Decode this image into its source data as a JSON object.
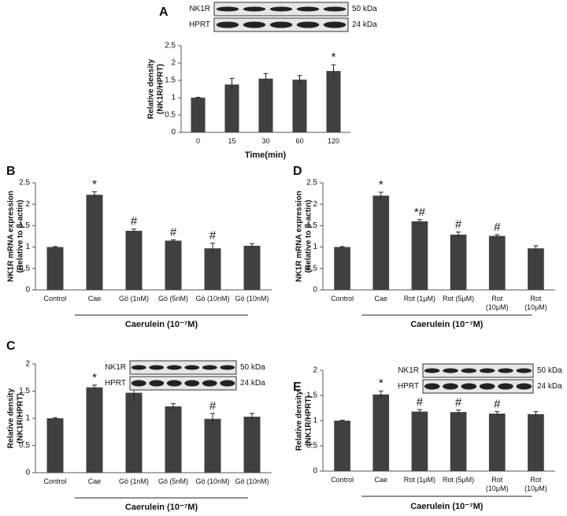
{
  "chart_data": [
    {
      "type": "bar",
      "panel": "A",
      "blot": {
        "bands": [
          "NK1R",
          "HPRT"
        ],
        "sizes": [
          "50 kDa",
          "24 kDa"
        ]
      },
      "ylabel": [
        "Relative density",
        "(NK1R/HPRT)"
      ],
      "xlabel": "Time(min)",
      "categories": [
        "0",
        "15",
        "30",
        "60",
        "120"
      ],
      "values": [
        1,
        1.38,
        1.55,
        1.52,
        1.77
      ],
      "errors": [
        0.01,
        0.18,
        0.15,
        0.12,
        0.18
      ],
      "annotations": [
        null,
        null,
        null,
        null,
        "*"
      ],
      "color": "#404040",
      "ylim": [
        0,
        2.5
      ],
      "yticks": [
        0,
        0.5,
        1,
        1.5,
        2,
        2.5
      ]
    },
    {
      "type": "bar",
      "panel": "B",
      "ylabel": [
        "NK1R mRNA expression",
        "(Relative to β-actin)"
      ],
      "xlabel": "Caerulein (10⁻⁷M)",
      "categories": [
        "Control",
        "Cae",
        "Gö (1nM)",
        "Gö (5nM)",
        "Gö (10nM)",
        "Gö (10nM)"
      ],
      "values": [
        1,
        2.22,
        1.38,
        1.15,
        0.97,
        1.03
      ],
      "errors": [
        0.01,
        0.07,
        0.04,
        0.02,
        0.12,
        0.05
      ],
      "annotations": [
        null,
        "*",
        "#",
        "#",
        "#",
        null
      ],
      "color": "#404040",
      "ylim": [
        0,
        2.5
      ],
      "yticks": [
        0,
        0.5,
        1,
        1.5,
        2,
        2.5
      ]
    },
    {
      "type": "bar",
      "panel": "D",
      "ylabel": [
        "NK1R mRNA expression",
        "(Relative to β-actin)"
      ],
      "xlabel": "Caerulein (10⁻⁷M)",
      "categories": [
        "Control",
        "Cae",
        "Rot (1μM)",
        "Rot (5μM)",
        "Rot (10μM)",
        "Rot (10μM)"
      ],
      "values": [
        1,
        2.2,
        1.6,
        1.29,
        1.26,
        0.97
      ],
      "errors": [
        0.01,
        0.08,
        0.04,
        0.06,
        0.03,
        0.06
      ],
      "annotations": [
        null,
        "*",
        "*#",
        "#",
        "#",
        null
      ],
      "color": "#404040",
      "ylim": [
        0,
        2.5
      ],
      "yticks": [
        0,
        0.5,
        1,
        1.5,
        2,
        2.5
      ]
    },
    {
      "type": "bar",
      "panel": "C",
      "blot": {
        "bands": [
          "NK1R",
          "HPRT"
        ],
        "sizes": [
          "50 kDa",
          "24 kDa"
        ]
      },
      "ylabel": [
        "Relative density",
        "(NK1R/HPRT)"
      ],
      "xlabel": "Caerulein (10⁻⁷M)",
      "categories": [
        "Control",
        "Cae",
        "Gö (1nM)",
        "Gö (5nM)",
        "Gö (10nM)",
        "Gö (10nM)"
      ],
      "values": [
        1,
        1.57,
        1.47,
        1.22,
        0.99,
        1.03
      ],
      "errors": [
        0.01,
        0.04,
        0.16,
        0.05,
        0.1,
        0.06
      ],
      "annotations": [
        null,
        "*",
        null,
        null,
        "#",
        null
      ],
      "color": "#404040",
      "ylim": [
        0,
        2
      ],
      "yticks": [
        0,
        0.5,
        1,
        1.5,
        2
      ]
    },
    {
      "type": "bar",
      "panel": "E",
      "blot": {
        "bands": [
          "NK1R",
          "HPRT"
        ],
        "sizes": [
          "50 kDa",
          "24 kDa"
        ]
      },
      "ylabel": [
        "Relative density",
        "(NK1R/HPRT)"
      ],
      "xlabel": "Caerulein (10⁻⁷M)",
      "categories": [
        "Control",
        "Cae",
        "Rot (1μM)",
        "Rot (5μM)",
        "Rot (10μM)",
        "Rot (10μM)"
      ],
      "values": [
        1,
        1.52,
        1.18,
        1.17,
        1.14,
        1.13
      ],
      "errors": [
        0.01,
        0.07,
        0.04,
        0.04,
        0.04,
        0.05
      ],
      "annotations": [
        null,
        "*",
        "#",
        "#",
        "#",
        null
      ],
      "color": "#404040",
      "ylim": [
        0,
        2
      ],
      "yticks": [
        0,
        0.5,
        1,
        1.5,
        2
      ]
    }
  ]
}
